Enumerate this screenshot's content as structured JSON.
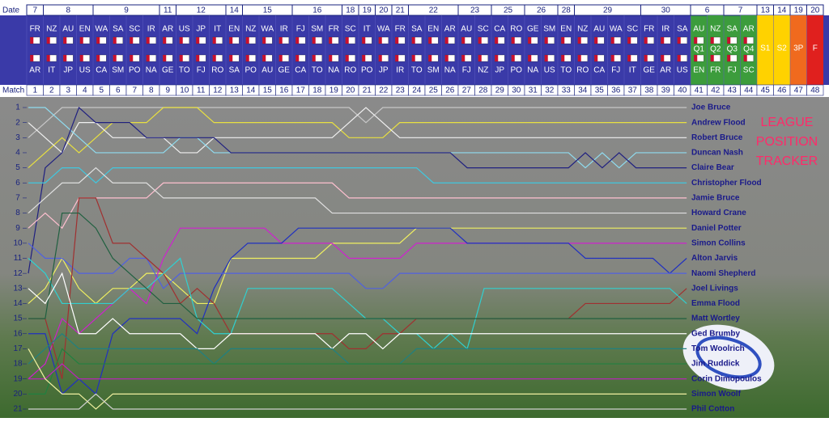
{
  "header": {
    "date_label": "Date",
    "match_label": "Match"
  },
  "matches": [
    {
      "number": 1,
      "date": "7",
      "home": "FR",
      "away": "AR"
    },
    {
      "number": 2,
      "date": "8",
      "home": "NZ",
      "away": "IT"
    },
    {
      "number": 3,
      "date": "8",
      "home": "AU",
      "away": "JP"
    },
    {
      "number": 4,
      "date": "8",
      "home": "EN",
      "away": "US"
    },
    {
      "number": 5,
      "date": "9",
      "home": "WA",
      "away": "CA"
    },
    {
      "number": 6,
      "date": "9",
      "home": "SA",
      "away": "SM"
    },
    {
      "number": 7,
      "date": "9",
      "home": "SC",
      "away": "PO"
    },
    {
      "number": 8,
      "date": "9",
      "home": "IR",
      "away": "NA"
    },
    {
      "number": 9,
      "date": "11",
      "home": "AR",
      "away": "GE"
    },
    {
      "number": 10,
      "date": "12",
      "home": "US",
      "away": "TO"
    },
    {
      "number": 11,
      "date": "12",
      "home": "JP",
      "away": "FJ"
    },
    {
      "number": 12,
      "date": "12",
      "home": "IT",
      "away": "RO"
    },
    {
      "number": 13,
      "date": "14",
      "home": "EN",
      "away": "SA"
    },
    {
      "number": 14,
      "date": "15",
      "home": "NZ",
      "away": "PO"
    },
    {
      "number": 15,
      "date": "15",
      "home": "WA",
      "away": "AU"
    },
    {
      "number": 16,
      "date": "15",
      "home": "IR",
      "away": "GE"
    },
    {
      "number": 17,
      "date": "16",
      "home": "FJ",
      "away": "CA"
    },
    {
      "number": 18,
      "date": "16",
      "home": "SM",
      "away": "TO"
    },
    {
      "number": 19,
      "date": "16",
      "home": "FR",
      "away": "NA"
    },
    {
      "number": 20,
      "date": "18",
      "home": "SC",
      "away": "RO"
    },
    {
      "number": 21,
      "date": "19",
      "home": "IT",
      "away": "PO"
    },
    {
      "number": 22,
      "date": "20",
      "home": "WA",
      "away": "JP"
    },
    {
      "number": 23,
      "date": "21",
      "home": "FR",
      "away": "IR"
    },
    {
      "number": 24,
      "date": "22",
      "home": "SA",
      "away": "TO"
    },
    {
      "number": 25,
      "date": "22",
      "home": "EN",
      "away": "SM"
    },
    {
      "number": 26,
      "date": "22",
      "home": "AR",
      "away": "NA"
    },
    {
      "number": 27,
      "date": "23",
      "home": "AU",
      "away": "FJ"
    },
    {
      "number": 28,
      "date": "23",
      "home": "SC",
      "away": "NZ"
    },
    {
      "number": 29,
      "date": "25",
      "home": "CA",
      "away": "JP"
    },
    {
      "number": 30,
      "date": "25",
      "home": "RO",
      "away": "PO"
    },
    {
      "number": 31,
      "date": "26",
      "home": "GE",
      "away": "NA"
    },
    {
      "number": 32,
      "date": "26",
      "home": "SM",
      "away": "US"
    },
    {
      "number": 33,
      "date": "28",
      "home": "EN",
      "away": "TO"
    },
    {
      "number": 34,
      "date": "29",
      "home": "NZ",
      "away": "RO"
    },
    {
      "number": 35,
      "date": "29",
      "home": "AU",
      "away": "CA"
    },
    {
      "number": 36,
      "date": "29",
      "home": "WA",
      "away": "FJ"
    },
    {
      "number": 37,
      "date": "29",
      "home": "SC",
      "away": "IT"
    },
    {
      "number": 38,
      "date": "30",
      "home": "FR",
      "away": "GE"
    },
    {
      "number": 39,
      "date": "30",
      "home": "IR",
      "away": "AR"
    },
    {
      "number": 40,
      "date": "30",
      "home": "SA",
      "away": "US"
    },
    {
      "number": 41,
      "date": "6",
      "home": "AU",
      "away": "EN",
      "stage": "Q1",
      "color": "#3c9c3c"
    },
    {
      "number": 42,
      "date": "6",
      "home": "NZ",
      "away": "FR",
      "stage": "Q2",
      "color": "#3c9c3c"
    },
    {
      "number": 43,
      "date": "7",
      "home": "SA",
      "away": "FJ",
      "stage": "Q3",
      "color": "#3c9c3c"
    },
    {
      "number": 44,
      "date": "7",
      "home": "AR",
      "away": "SC",
      "stage": "Q4",
      "color": "#3c9c3c"
    },
    {
      "number": 45,
      "date": "13",
      "stage": "S1",
      "color": "#ffd200"
    },
    {
      "number": 46,
      "date": "14",
      "stage": "S2",
      "color": "#ffd200"
    },
    {
      "number": 47,
      "date": "19",
      "stage": "3P",
      "color": "#f06a1e"
    },
    {
      "number": 48,
      "date": "20",
      "stage": "F",
      "color": "#e0201e"
    }
  ],
  "chart_data": {
    "type": "line",
    "title_lines": [
      "LEAGUE",
      "POSITION",
      "TRACKER"
    ],
    "title_color": "#ff2a6a",
    "ylim": [
      21,
      1
    ],
    "yticks": [
      1,
      2,
      3,
      4,
      5,
      6,
      7,
      8,
      9,
      10,
      11,
      12,
      13,
      14,
      15,
      16,
      17,
      18,
      19,
      20,
      21
    ],
    "series": [
      {
        "name": "Joe Bruce",
        "color": "#c8c8c8",
        "values": [
          3,
          2,
          1,
          1,
          1,
          1,
          1,
          1,
          1,
          1,
          1,
          1,
          1,
          1,
          1,
          1,
          1,
          1,
          1,
          1,
          2,
          1,
          1,
          1,
          1,
          1,
          1,
          1,
          1,
          1,
          1,
          1,
          1,
          1,
          1,
          1,
          1,
          1,
          1,
          1
        ]
      },
      {
        "name": "Andrew Flood",
        "color": "#e8e040",
        "values": [
          5,
          4,
          3,
          4,
          3,
          2,
          2,
          2,
          1,
          1,
          1,
          2,
          2,
          2,
          2,
          2,
          2,
          2,
          2,
          3,
          3,
          3,
          2,
          2,
          2,
          2,
          2,
          2,
          2,
          2,
          2,
          2,
          2,
          2,
          2,
          2,
          2,
          2,
          2,
          2
        ]
      },
      {
        "name": "Robert Bruce",
        "color": "#f0f0f0",
        "values": [
          2,
          3,
          4,
          2,
          2,
          3,
          3,
          3,
          3,
          4,
          4,
          3,
          3,
          3,
          3,
          3,
          3,
          3,
          3,
          2,
          1,
          2,
          3,
          3,
          3,
          3,
          3,
          3,
          3,
          3,
          3,
          3,
          3,
          3,
          3,
          3,
          3,
          3,
          3,
          3
        ]
      },
      {
        "name": "Duncan Nash",
        "color": "#8fdcf0",
        "values": [
          1,
          1,
          2,
          3,
          4,
          4,
          4,
          4,
          4,
          3,
          3,
          4,
          4,
          4,
          4,
          4,
          4,
          4,
          4,
          4,
          4,
          4,
          4,
          4,
          4,
          4,
          4,
          4,
          4,
          4,
          4,
          4,
          4,
          5,
          4,
          5,
          4,
          4,
          4,
          4
        ]
      },
      {
        "name": "Claire Bear",
        "color": "#202080",
        "values": [
          12,
          5,
          4,
          1,
          2,
          2,
          2,
          3,
          3,
          3,
          3,
          3,
          4,
          4,
          4,
          4,
          4,
          4,
          4,
          4,
          4,
          4,
          4,
          4,
          4,
          4,
          5,
          5,
          5,
          5,
          5,
          5,
          5,
          4,
          5,
          4,
          5,
          5,
          5,
          5
        ]
      },
      {
        "name": "Christopher Flood",
        "color": "#40c8e0",
        "values": [
          6,
          6,
          5,
          5,
          6,
          5,
          5,
          5,
          5,
          5,
          5,
          5,
          5,
          5,
          5,
          5,
          5,
          5,
          5,
          5,
          5,
          5,
          5,
          5,
          6,
          6,
          6,
          6,
          6,
          6,
          6,
          6,
          6,
          6,
          6,
          6,
          6,
          6,
          6,
          6
        ]
      },
      {
        "name": "Jamie Bruce",
        "color": "#ffc0d0",
        "values": [
          9,
          8,
          9,
          7,
          7,
          7,
          7,
          7,
          6,
          6,
          6,
          6,
          6,
          6,
          6,
          6,
          6,
          6,
          6,
          7,
          7,
          7,
          7,
          7,
          7,
          7,
          7,
          7,
          7,
          7,
          7,
          7,
          7,
          7,
          7,
          7,
          7,
          7,
          7,
          7
        ]
      },
      {
        "name": "Howard Crane",
        "color": "#e0e0e0",
        "values": [
          8,
          7,
          6,
          6,
          5,
          6,
          6,
          6,
          7,
          7,
          7,
          7,
          7,
          7,
          7,
          7,
          7,
          7,
          8,
          8,
          8,
          8,
          8,
          8,
          8,
          8,
          8,
          8,
          8,
          8,
          8,
          8,
          8,
          8,
          8,
          8,
          8,
          8,
          8,
          8
        ]
      },
      {
        "name": "Daniel Potter",
        "color": "#f0f060",
        "values": [
          14,
          13,
          11,
          13,
          14,
          13,
          13,
          12,
          12,
          13,
          14,
          14,
          11,
          11,
          11,
          11,
          11,
          11,
          10,
          10,
          10,
          10,
          10,
          9,
          9,
          9,
          9,
          9,
          9,
          9,
          9,
          9,
          9,
          9,
          9,
          9,
          9,
          9,
          9,
          9
        ]
      },
      {
        "name": "Simon Collins",
        "color": "#d020d0",
        "values": [
          19,
          18,
          15,
          16,
          15,
          14,
          13,
          14,
          11,
          9,
          9,
          9,
          9,
          9,
          9,
          10,
          10,
          10,
          10,
          11,
          11,
          11,
          11,
          10,
          10,
          10,
          10,
          10,
          10,
          10,
          10,
          10,
          10,
          10,
          10,
          10,
          10,
          10,
          10,
          10
        ]
      },
      {
        "name": "Alton Jarvis",
        "color": "#2030c0",
        "values": [
          16,
          16,
          20,
          19,
          20,
          16,
          15,
          15,
          15,
          15,
          16,
          13,
          11,
          10,
          10,
          10,
          9,
          9,
          9,
          9,
          9,
          9,
          9,
          9,
          9,
          9,
          10,
          10,
          10,
          10,
          10,
          10,
          10,
          11,
          11,
          11,
          11,
          11,
          12,
          11
        ]
      },
      {
        "name": "Naomi Shepherd",
        "color": "#5060e0",
        "values": [
          10,
          11,
          11,
          12,
          12,
          12,
          11,
          11,
          13,
          12,
          12,
          12,
          12,
          12,
          12,
          12,
          12,
          12,
          12,
          12,
          13,
          13,
          12,
          12,
          12,
          12,
          12,
          12,
          12,
          12,
          12,
          12,
          12,
          12,
          12,
          12,
          12,
          12,
          12,
          12
        ]
      },
      {
        "name": "Joel Livings",
        "color": "#a03030",
        "values": [
          15,
          15,
          19,
          7,
          7,
          10,
          10,
          11,
          12,
          14,
          13,
          14,
          16,
          16,
          16,
          16,
          16,
          16,
          16,
          17,
          17,
          16,
          16,
          15,
          15,
          15,
          15,
          15,
          15,
          15,
          15,
          15,
          15,
          14,
          14,
          14,
          14,
          14,
          14,
          13
        ]
      },
      {
        "name": "Emma Flood",
        "color": "#30d0d0",
        "values": [
          11,
          12,
          14,
          14,
          14,
          14,
          13,
          13,
          12,
          11,
          15,
          16,
          16,
          13,
          13,
          13,
          13,
          13,
          13,
          14,
          15,
          15,
          16,
          16,
          17,
          16,
          17,
          13,
          13,
          13,
          13,
          13,
          13,
          13,
          13,
          13,
          13,
          13,
          13,
          14
        ]
      },
      {
        "name": "Matt Wortley",
        "color": "#206040",
        "values": [
          15,
          15,
          8,
          8,
          9,
          11,
          12,
          13,
          14,
          14,
          15,
          15,
          15,
          15,
          15,
          15,
          15,
          15,
          15,
          15,
          15,
          15,
          15,
          15,
          15,
          15,
          15,
          15,
          15,
          15,
          15,
          15,
          15,
          15,
          15,
          15,
          15,
          15,
          15,
          15
        ]
      },
      {
        "name": "Ged Brumby",
        "color": "#ffffff",
        "values": [
          13,
          14,
          12,
          16,
          16,
          15,
          16,
          16,
          16,
          16,
          17,
          17,
          16,
          16,
          16,
          16,
          16,
          16,
          17,
          16,
          16,
          17,
          16,
          16,
          16,
          16,
          16,
          16,
          16,
          16,
          16,
          16,
          16,
          16,
          16,
          16,
          16,
          16,
          16,
          16
        ]
      },
      {
        "name": "Tom Woolrich",
        "color": "#208080",
        "values": [
          18,
          17,
          16,
          17,
          17,
          17,
          17,
          17,
          17,
          17,
          17,
          18,
          17,
          17,
          17,
          17,
          17,
          17,
          17,
          18,
          18,
          18,
          18,
          17,
          17,
          17,
          17,
          17,
          17,
          17,
          17,
          17,
          17,
          17,
          17,
          17,
          17,
          17,
          17,
          17
        ]
      },
      {
        "name": "Jim Ruddick",
        "color": "#208040",
        "values": [
          20,
          20,
          17,
          18,
          18,
          18,
          18,
          18,
          18,
          18,
          18,
          18,
          18,
          18,
          18,
          18,
          18,
          18,
          18,
          18,
          18,
          18,
          18,
          18,
          18,
          18,
          18,
          18,
          18,
          18,
          18,
          18,
          18,
          18,
          18,
          18,
          18,
          18,
          18,
          18
        ]
      },
      {
        "name": "Corin Dimopoulos",
        "color": "#c020c0",
        "values": [
          19,
          19,
          18,
          19,
          19,
          19,
          19,
          19,
          19,
          19,
          19,
          19,
          19,
          19,
          19,
          19,
          19,
          19,
          19,
          19,
          19,
          19,
          19,
          19,
          19,
          19,
          19,
          19,
          19,
          19,
          19,
          19,
          19,
          19,
          19,
          19,
          19,
          19,
          19,
          19
        ]
      },
      {
        "name": "Simon Woolf",
        "color": "#f0f0a0",
        "values": [
          17,
          19,
          20,
          20,
          21,
          20,
          20,
          20,
          20,
          20,
          20,
          20,
          20,
          20,
          20,
          20,
          20,
          20,
          20,
          20,
          20,
          20,
          20,
          20,
          20,
          20,
          20,
          20,
          20,
          20,
          20,
          20,
          20,
          20,
          20,
          20,
          20,
          20,
          20,
          20
        ]
      },
      {
        "name": "Phil Cotton",
        "color": "#d0d0d0",
        "values": [
          21,
          21,
          21,
          21,
          20,
          21,
          21,
          21,
          21,
          21,
          21,
          21,
          21,
          21,
          21,
          21,
          21,
          21,
          21,
          21,
          21,
          21,
          21,
          21,
          21,
          21,
          21,
          21,
          21,
          21,
          21,
          21,
          21,
          21,
          21,
          21,
          21,
          21,
          21,
          21
        ]
      }
    ]
  }
}
